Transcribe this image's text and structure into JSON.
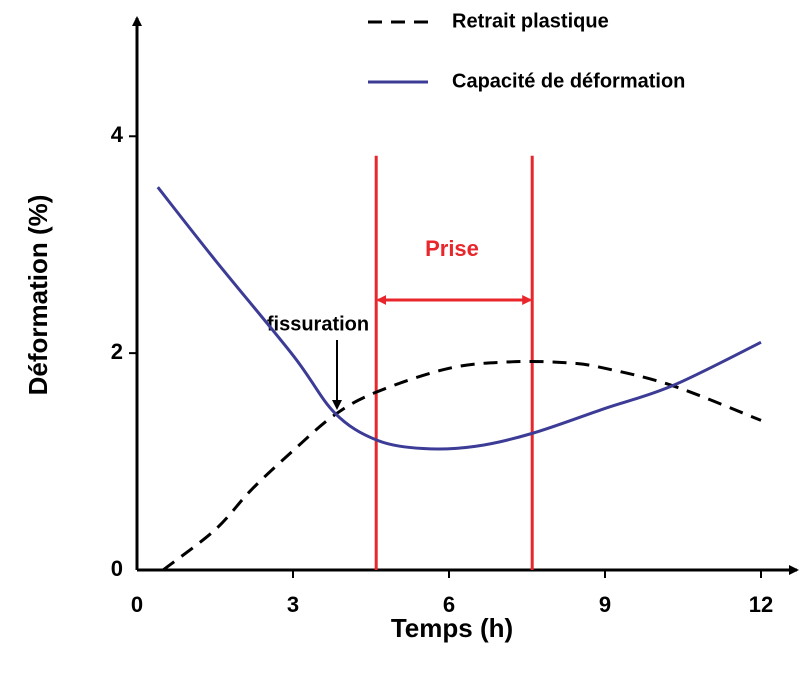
{
  "chart_data": {
    "type": "line",
    "xlabel": "Temps (h)",
    "ylabel": "Déformation (%)",
    "xlim": [
      0,
      12.75
    ],
    "xticks": [
      0,
      3,
      6,
      9,
      12
    ],
    "ylim": [
      0,
      5.1
    ],
    "yticks": [
      0,
      2,
      4
    ],
    "series": [
      {
        "name": "Retrait plastique",
        "color": "#000000",
        "dash": true,
        "x": [
          0.5,
          1.5,
          2.2,
          3,
          3.8,
          4.6,
          6,
          7.2,
          8.3,
          9,
          10.3,
          12
        ],
        "values": [
          0,
          0.37,
          0.74,
          1.1,
          1.43,
          1.64,
          1.86,
          1.92,
          1.91,
          1.86,
          1.7,
          1.38
        ]
      },
      {
        "name": "Capacité de déformation",
        "color": "#3c3c96",
        "dash": false,
        "x": [
          0.4,
          1.5,
          3,
          3.8,
          4.6,
          5.5,
          6.5,
          7.6,
          9,
          10.3,
          12
        ],
        "values": [
          3.53,
          2.86,
          1.98,
          1.45,
          1.2,
          1.12,
          1.14,
          1.26,
          1.49,
          1.7,
          2.1
        ]
      }
    ],
    "vlines": [
      4.6,
      7.6
    ],
    "vline_color": "#e8262b",
    "vline_top": 3.82,
    "annotations": [
      "Prise",
      "fissuration"
    ]
  }
}
